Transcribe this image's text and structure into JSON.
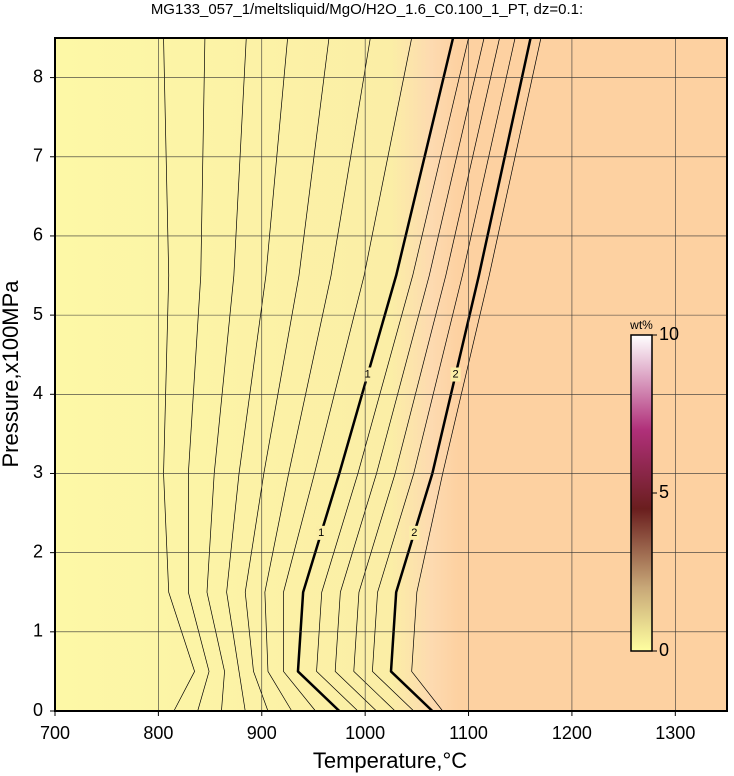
{
  "chart_data": {
    "type": "contour",
    "title": "MG133_057_1/meltsliquid/MgO/H2O_1.6_C0.100_1_PT, dz=0.1:",
    "x_label": "Temperature,°C",
    "y_label": "Pressure,x100MPa",
    "xlim": [
      700,
      1350
    ],
    "ylim": [
      0,
      8.5
    ],
    "xticks": [
      700,
      800,
      900,
      1000,
      1100,
      1200,
      1300
    ],
    "yticks": [
      0,
      1,
      2,
      3,
      4,
      5,
      6,
      7,
      8
    ],
    "grid": true,
    "contour_y": [
      0,
      0.5,
      1.5,
      3,
      5.5,
      8.5
    ],
    "contours": [
      {
        "level": 0.3,
        "x": [
          815,
          835,
          810,
          805,
          810,
          805
        ]
      },
      {
        "level": 0.4,
        "x": [
          838,
          849,
          829,
          829,
          841,
          845
        ]
      },
      {
        "level": 0.5,
        "x": [
          861,
          864,
          847,
          854,
          873,
          885
        ]
      },
      {
        "level": 0.6,
        "x": [
          884,
          878,
          866,
          878,
          904,
          925
        ]
      },
      {
        "level": 0.7,
        "x": [
          906,
          892,
          884,
          902,
          936,
          965
        ]
      },
      {
        "level": 0.8,
        "x": [
          929,
          906,
          903,
          926,
          967,
          1005
        ]
      },
      {
        "level": 0.9,
        "x": [
          952,
          921,
          921,
          951,
          999,
          1045
        ]
      },
      {
        "level": 1,
        "x": [
          975,
          935,
          940,
          975,
          1030,
          1085
        ]
      },
      {
        "level": 1.2,
        "x": [
          993,
          953,
          958,
          993,
          1046,
          1100
        ]
      },
      {
        "level": 1.4,
        "x": [
          1011,
          971,
          976,
          1011,
          1062,
          1115
        ]
      },
      {
        "level": 1.6,
        "x": [
          1029,
          989,
          994,
          1029,
          1078,
          1130
        ]
      },
      {
        "level": 1.8,
        "x": [
          1047,
          1007,
          1012,
          1047,
          1094,
          1145
        ]
      },
      {
        "level": 2,
        "x": [
          1065,
          1025,
          1030,
          1065,
          1110,
          1160
        ]
      },
      {
        "level": 2.2,
        "x": [
          1075,
          1045,
          1050,
          1075,
          1120,
          1170
        ]
      }
    ],
    "colorbar": {
      "label": "wt%",
      "lim": [
        0,
        10
      ],
      "ticks": [
        0,
        5,
        10
      ]
    }
  }
}
